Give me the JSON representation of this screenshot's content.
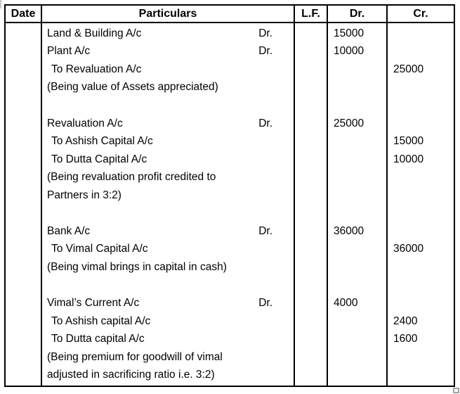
{
  "colors": {
    "table_border": "#000000",
    "text": "#000000",
    "resize_handle": "#a3a3a3"
  },
  "header": {
    "date": "Date",
    "particulars": "Particulars",
    "lf": "L.F.",
    "dr": "Dr.",
    "cr": "Cr."
  },
  "rows": [
    {
      "text": "Land & Building A/c",
      "posting": "Dr.",
      "dr": "15000",
      "cr": ""
    },
    {
      "text": "Plant A/c",
      "posting": "Dr.",
      "dr": "10000",
      "cr": ""
    },
    {
      "text": "To Revaluation A/c",
      "posting": "",
      "dr": "",
      "cr": "25000"
    },
    {
      "text": "(Being value of Assets appreciated)",
      "posting": "",
      "dr": "",
      "cr": ""
    },
    {
      "text": "",
      "posting": "",
      "dr": "",
      "cr": ""
    },
    {
      "text": "Revaluation A/c",
      "posting": "Dr.",
      "dr": "25000",
      "cr": ""
    },
    {
      "text": "To Ashish Capital A/c",
      "posting": "",
      "dr": "",
      "cr": "15000"
    },
    {
      "text": "To Dutta Capital A/c",
      "posting": "",
      "dr": "",
      "cr": "10000"
    },
    {
      "text": "(Being revaluation profit credited to",
      "posting": "",
      "dr": "",
      "cr": ""
    },
    {
      "text": "Partners in 3:2)",
      "posting": "",
      "dr": "",
      "cr": ""
    },
    {
      "text": "",
      "posting": "",
      "dr": "",
      "cr": ""
    },
    {
      "text": "Bank A/c",
      "posting": "Dr.",
      "dr": "36000",
      "cr": ""
    },
    {
      "text": "To Vimal Capital A/c",
      "posting": "",
      "dr": "",
      "cr": "36000"
    },
    {
      "text": "(Being vimal brings in capital in cash)",
      "posting": "",
      "dr": "",
      "cr": ""
    },
    {
      "text": "",
      "posting": "",
      "dr": "",
      "cr": ""
    },
    {
      "text": "Vimal’s Current A/c",
      "posting": "Dr.",
      "dr": "4000",
      "cr": ""
    },
    {
      "text": "To Ashish capital A/c",
      "posting": "",
      "dr": "",
      "cr": "2400"
    },
    {
      "text": "To Dutta capital A/c",
      "posting": "",
      "dr": "",
      "cr": "1600"
    },
    {
      "text": "(Being premium for goodwill of vimal",
      "posting": "",
      "dr": "",
      "cr": ""
    },
    {
      "text": "adjusted in sacrificing ratio i.e. 3:2)",
      "posting": "",
      "dr": "",
      "cr": ""
    }
  ]
}
